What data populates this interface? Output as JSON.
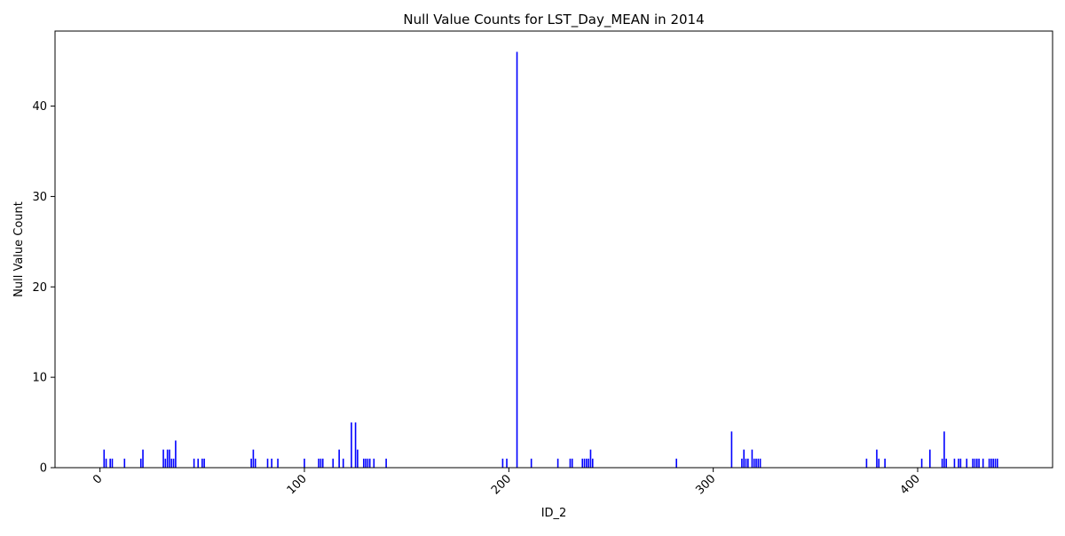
{
  "chart_data": {
    "type": "bar",
    "title": "Null Value Counts for LST_Day_MEAN in 2014",
    "xlabel": "ID_2",
    "ylabel": "Null Value Count",
    "xlim": [
      -22,
      466
    ],
    "ylim": [
      0,
      48.3
    ],
    "xticks": [
      0,
      100,
      200,
      300,
      400
    ],
    "xtick_labels": [
      "0",
      "100",
      "200",
      "300",
      "400"
    ],
    "xtick_rotation_deg": -45,
    "yticks": [
      0,
      10,
      20,
      30,
      40
    ],
    "ytick_labels": [
      "0",
      "10",
      "20",
      "30",
      "40"
    ],
    "bar_color": "#0000ff",
    "grid": false,
    "legend": "none",
    "x": [
      2,
      3,
      5,
      6,
      12,
      20,
      21,
      31,
      32,
      33,
      34,
      35,
      36,
      37,
      46,
      48,
      50,
      51,
      74,
      75,
      76,
      82,
      84,
      87,
      100,
      107,
      108,
      109,
      114,
      117,
      119,
      123,
      125,
      126,
      129,
      130,
      131,
      132,
      134,
      140,
      197,
      199,
      211,
      224,
      230,
      231,
      236,
      237,
      238,
      239,
      240,
      241,
      282,
      309,
      314,
      315,
      316,
      317,
      319,
      320,
      321,
      322,
      323,
      375,
      380,
      381,
      384,
      402,
      406,
      412,
      413,
      414,
      418,
      420,
      421,
      424,
      427,
      428,
      429,
      430,
      432,
      435,
      436,
      437,
      438,
      439
    ],
    "values": [
      2,
      1,
      1,
      1,
      1,
      1,
      2,
      2,
      1,
      2,
      2,
      1,
      1,
      3,
      1,
      1,
      1,
      1,
      1,
      2,
      1,
      1,
      1,
      1,
      1,
      1,
      1,
      1,
      1,
      2,
      1,
      5,
      5,
      2,
      1,
      1,
      1,
      1,
      1,
      1,
      1,
      1,
      1,
      1,
      1,
      1,
      1,
      1,
      1,
      1,
      2,
      1,
      1,
      4,
      1,
      2,
      1,
      1,
      2,
      1,
      1,
      1,
      1,
      1,
      2,
      1,
      1,
      1,
      2,
      1,
      4,
      1,
      1,
      1,
      1,
      1,
      1,
      1,
      1,
      1,
      1,
      1,
      1,
      1,
      1,
      1
    ],
    "highlight": {
      "x": 204,
      "value": 46
    }
  }
}
